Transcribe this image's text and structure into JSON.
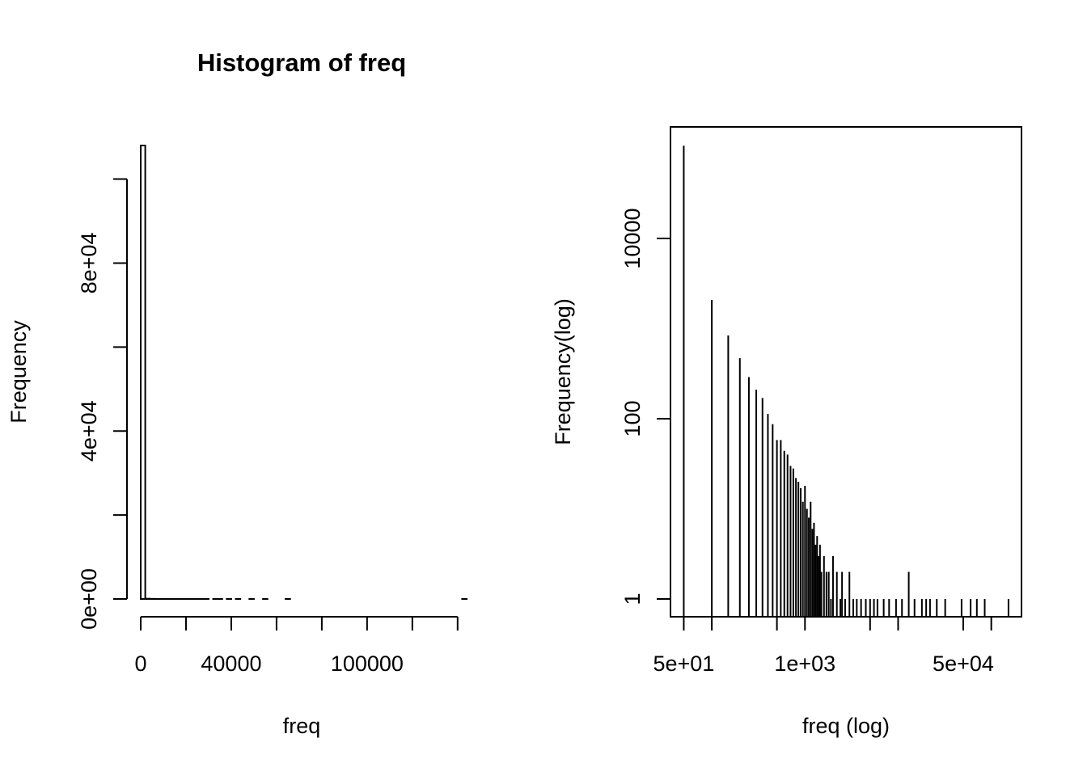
{
  "chart_data": [
    {
      "type": "histogram",
      "title": "Histogram of freq",
      "xlabel": "freq",
      "ylabel": "Frequency",
      "bins": [
        0,
        2000,
        4000,
        6000,
        8000,
        10000,
        12000,
        14000,
        16000,
        18000,
        20000,
        22000,
        24000,
        26000,
        28000,
        30000,
        32000,
        34000,
        36000,
        38000,
        40000,
        42000,
        44000,
        46000,
        48000,
        50000,
        52000,
        54000,
        56000,
        58000,
        60000,
        62000,
        64000,
        66000,
        68000,
        70000,
        72000,
        74000,
        76000,
        78000,
        80000,
        82000,
        84000,
        86000,
        88000,
        90000,
        92000,
        94000,
        96000,
        98000,
        100000,
        102000,
        104000,
        106000,
        108000,
        110000,
        112000,
        114000,
        116000,
        118000,
        120000,
        122000,
        124000,
        126000,
        128000,
        130000,
        132000,
        134000,
        136000,
        138000,
        140000,
        142000,
        144000
      ],
      "values": [
        108000,
        60,
        25,
        12,
        8,
        5,
        4,
        3,
        3,
        2,
        2,
        1,
        2,
        1,
        1,
        0,
        1,
        1,
        0,
        1,
        0,
        1,
        0,
        0,
        1,
        0,
        0,
        1,
        0,
        0,
        0,
        0,
        1,
        0,
        0,
        0,
        0,
        0,
        0,
        0,
        0,
        0,
        0,
        0,
        0,
        0,
        0,
        0,
        0,
        0,
        0,
        0,
        0,
        0,
        0,
        0,
        0,
        0,
        0,
        0,
        0,
        0,
        0,
        0,
        0,
        0,
        0,
        0,
        0,
        0,
        0,
        1
      ],
      "color": "#000000",
      "xlim": [
        0,
        144000
      ],
      "ylim": [
        0,
        108000
      ],
      "xticks": [
        0,
        40000,
        100000
      ],
      "xminor_ticks": [
        20000,
        60000,
        80000,
        120000,
        140000
      ],
      "yticks": [
        {
          "value": 0,
          "label": "0e+00"
        },
        {
          "value": 40000,
          "label": "4e+04"
        },
        {
          "value": 80000,
          "label": "8e+04"
        }
      ],
      "yminor_ticks": [
        20000,
        60000,
        100000
      ]
    },
    {
      "type": "bar",
      "xlabel": "freq (log)",
      "ylabel": "Frequency(log)",
      "xlog": true,
      "ylog": true,
      "color": "#000000",
      "x": [
        50,
        100,
        150,
        200,
        250,
        300,
        350,
        400,
        450,
        500,
        550,
        600,
        650,
        700,
        750,
        800,
        850,
        900,
        950,
        1000,
        1050,
        1100,
        1150,
        1200,
        1250,
        1300,
        1350,
        1400,
        1450,
        1500,
        1600,
        1700,
        1800,
        1900,
        2000,
        2200,
        2400,
        2500,
        2700,
        3000,
        3300,
        3600,
        4000,
        4500,
        5000,
        5500,
        6000,
        7000,
        8000,
        9500,
        11000,
        13000,
        15000,
        18000,
        20000,
        22000,
        26000,
        32000,
        48000,
        60000,
        70000,
        85000,
        153000
      ],
      "values": [
        107000,
        2080,
        840,
        470,
        290,
        210,
        170,
        113,
        87,
        58,
        58,
        44,
        40,
        30,
        28,
        22,
        20,
        17,
        12,
        18,
        10,
        8,
        12,
        6,
        7,
        4,
        5,
        3,
        4,
        2,
        3,
        2,
        2,
        1,
        3,
        2,
        1,
        2,
        1,
        2,
        1,
        1,
        1,
        1,
        1,
        1,
        1,
        1,
        1,
        1,
        1,
        2,
        1,
        1,
        1,
        1,
        1,
        1,
        1,
        1,
        1,
        1,
        1
      ],
      "xlim": [
        36,
        211000
      ],
      "ylim": [
        0.635,
        173000
      ],
      "xticks": [
        {
          "value": 50,
          "label": "5e+01"
        },
        {
          "value": 1000,
          "label": "1e+03"
        },
        {
          "value": 50000,
          "label": "5e+04"
        }
      ],
      "xminor_ticks": [
        100,
        500,
        5000,
        10000,
        100000
      ],
      "yticks": [
        1,
        100,
        10000
      ]
    }
  ]
}
